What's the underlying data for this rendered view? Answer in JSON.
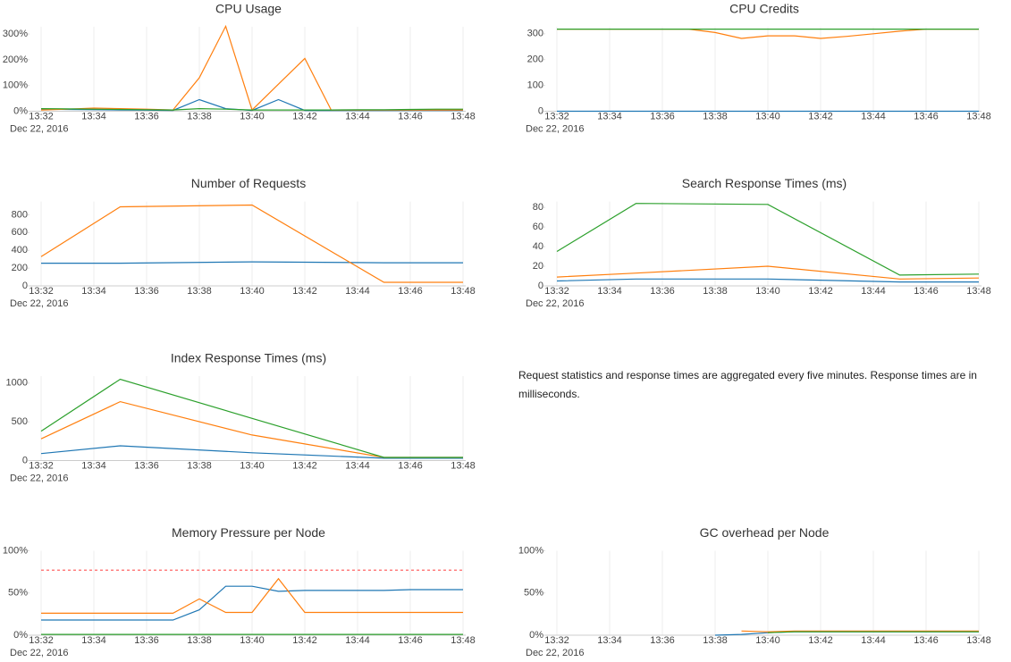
{
  "chart_data": [
    {
      "type": "line",
      "title": "CPU Usage",
      "x_date_label": "Dec 22, 2016",
      "x": [
        "13:32",
        "13:33",
        "13:34",
        "13:35",
        "13:36",
        "13:37",
        "13:38",
        "13:39",
        "13:40",
        "13:41",
        "13:42",
        "13:43",
        "13:44",
        "13:45",
        "13:46",
        "13:47",
        "13:48"
      ],
      "xlim": [
        "13:32",
        "13:48"
      ],
      "xticks": [
        "13:32",
        "13:34",
        "13:36",
        "13:38",
        "13:40",
        "13:42",
        "13:44",
        "13:46",
        "13:48"
      ],
      "ylim": [
        0,
        328
      ],
      "yticks": [
        {
          "value": 0,
          "label": "0%"
        },
        {
          "value": 100,
          "label": "100%"
        },
        {
          "value": 200,
          "label": "200%"
        },
        {
          "value": 300,
          "label": "300%"
        }
      ],
      "grid": "x",
      "series": [
        {
          "color": "#1f77b4",
          "values": [
            8,
            7,
            6,
            5,
            4,
            3,
            45,
            10,
            3,
            45,
            3,
            3,
            3,
            3,
            3,
            3,
            3
          ]
        },
        {
          "color": "#ff7f0e",
          "values": [
            5,
            8,
            12,
            10,
            8,
            5,
            130,
            330,
            5,
            105,
            205,
            5,
            5,
            5,
            5,
            5,
            5
          ]
        },
        {
          "color": "#2ca02c",
          "values": [
            10,
            9,
            8,
            7,
            6,
            5,
            10,
            8,
            5,
            5,
            5,
            5,
            6,
            6,
            7,
            8,
            8
          ]
        }
      ]
    },
    {
      "type": "line",
      "title": "CPU Credits",
      "x_date_label": "Dec 22, 2016",
      "x": [
        "13:32",
        "13:33",
        "13:34",
        "13:35",
        "13:36",
        "13:37",
        "13:38",
        "13:39",
        "13:40",
        "13:41",
        "13:42",
        "13:43",
        "13:44",
        "13:45",
        "13:46",
        "13:47",
        "13:48"
      ],
      "xlim": [
        "13:32",
        "13:48"
      ],
      "xticks": [
        "13:32",
        "13:34",
        "13:36",
        "13:38",
        "13:40",
        "13:42",
        "13:44",
        "13:46",
        "13:48"
      ],
      "ylim": [
        0,
        327
      ],
      "yticks": [
        0,
        100,
        200,
        300
      ],
      "grid": "x",
      "series": [
        {
          "color": "#1f77b4",
          "values": [
            0,
            0,
            0,
            0,
            0,
            0,
            0,
            0,
            0,
            0,
            0,
            0,
            0,
            0,
            0,
            0,
            0
          ]
        },
        {
          "color": "#ff7f0e",
          "values": [
            318,
            318,
            318,
            318,
            318,
            318,
            305,
            282,
            292,
            292,
            282,
            290,
            300,
            310,
            318,
            318,
            318
          ]
        },
        {
          "color": "#2ca02c",
          "values": [
            318,
            318,
            318,
            318,
            318,
            318,
            318,
            318,
            318,
            318,
            318,
            318,
            318,
            318,
            318,
            318,
            318
          ]
        }
      ]
    },
    {
      "type": "line",
      "title": "Number of Requests",
      "x_date_label": "Dec 22, 2016",
      "x": [
        "13:32",
        "13:35",
        "13:40",
        "13:45",
        "13:48"
      ],
      "xlim": [
        "13:32",
        "13:48"
      ],
      "xticks": [
        "13:32",
        "13:34",
        "13:36",
        "13:38",
        "13:40",
        "13:42",
        "13:44",
        "13:46",
        "13:48"
      ],
      "ylim": [
        0,
        950
      ],
      "yticks": [
        0,
        200,
        400,
        600,
        800
      ],
      "grid": "x",
      "series": [
        {
          "color": "#1f77b4",
          "values": [
            255,
            255,
            270,
            260,
            260
          ]
        },
        {
          "color": "#ff7f0e",
          "values": [
            330,
            890,
            910,
            40,
            40
          ]
        }
      ]
    },
    {
      "type": "line",
      "title": "Search Response Times (ms)",
      "x_date_label": "Dec 22, 2016",
      "x": [
        "13:32",
        "13:35",
        "13:40",
        "13:45",
        "13:48"
      ],
      "xlim": [
        "13:32",
        "13:48"
      ],
      "xticks": [
        "13:32",
        "13:34",
        "13:36",
        "13:38",
        "13:40",
        "13:42",
        "13:44",
        "13:46",
        "13:48"
      ],
      "ylim": [
        0,
        86
      ],
      "yticks": [
        0,
        20,
        40,
        60,
        80
      ],
      "grid": "x",
      "series": [
        {
          "color": "#1f77b4",
          "values": [
            5,
            7,
            7,
            4,
            4
          ]
        },
        {
          "color": "#ff7f0e",
          "values": [
            9,
            13,
            20,
            7,
            8
          ]
        },
        {
          "color": "#2ca02c",
          "values": [
            35,
            84,
            83,
            11,
            12
          ]
        }
      ]
    },
    {
      "type": "line",
      "title": "Index Response Times (ms)",
      "x_date_label": "Dec 22, 2016",
      "x": [
        "13:32",
        "13:35",
        "13:40",
        "13:45",
        "13:48"
      ],
      "xlim": [
        "13:32",
        "13:48"
      ],
      "xticks": [
        "13:32",
        "13:34",
        "13:36",
        "13:38",
        "13:40",
        "13:42",
        "13:44",
        "13:46",
        "13:48"
      ],
      "ylim": [
        0,
        1090
      ],
      "yticks": [
        0,
        500,
        1000
      ],
      "grid": "x",
      "series": [
        {
          "color": "#1f77b4",
          "values": [
            90,
            190,
            100,
            30,
            30
          ]
        },
        {
          "color": "#ff7f0e",
          "values": [
            280,
            760,
            330,
            40,
            40
          ]
        },
        {
          "color": "#2ca02c",
          "values": [
            380,
            1050,
            545,
            40,
            40
          ]
        }
      ]
    },
    {
      "type": "line",
      "title": "Memory Pressure per Node",
      "x_date_label": "Dec 22, 2016",
      "x": [
        "13:32",
        "13:33",
        "13:34",
        "13:35",
        "13:36",
        "13:37",
        "13:38",
        "13:39",
        "13:40",
        "13:41",
        "13:42",
        "13:43",
        "13:44",
        "13:45",
        "13:46",
        "13:47",
        "13:48"
      ],
      "xlim": [
        "13:32",
        "13:48"
      ],
      "xticks": [
        "13:32",
        "13:34",
        "13:36",
        "13:38",
        "13:40",
        "13:42",
        "13:44",
        "13:46",
        "13:48"
      ],
      "ylim": [
        0,
        100
      ],
      "yticks": [
        {
          "value": 0,
          "label": "0%"
        },
        {
          "value": 50,
          "label": "50%"
        },
        {
          "value": 100,
          "label": "100%"
        }
      ],
      "grid": "x",
      "series": [
        {
          "color": "#1f77b4",
          "values": [
            18,
            18,
            18,
            18,
            18,
            18,
            30,
            58,
            58,
            52,
            53,
            53,
            53,
            53,
            54,
            54,
            54
          ]
        },
        {
          "color": "#ff7f0e",
          "values": [
            26,
            26,
            26,
            26,
            26,
            26,
            43,
            27,
            27,
            67,
            27,
            27,
            27,
            27,
            27,
            27,
            27
          ]
        },
        {
          "color": "#2ca02c",
          "values": [
            1,
            1,
            1,
            1,
            1,
            1,
            1,
            1,
            1,
            1,
            1,
            1,
            1,
            1,
            1,
            1,
            1
          ]
        },
        {
          "color": "#ff5555",
          "dashed": true,
          "values": [
            77,
            77,
            77,
            77,
            77,
            77,
            77,
            77,
            77,
            77,
            77,
            77,
            77,
            77,
            77,
            77,
            77
          ]
        }
      ]
    },
    {
      "type": "line",
      "title": "GC overhead per Node",
      "x_date_label": "Dec 22, 2016",
      "x": [
        "13:32",
        "13:33",
        "13:34",
        "13:35",
        "13:36",
        "13:37",
        "13:38",
        "13:39",
        "13:40",
        "13:41",
        "13:42",
        "13:43",
        "13:44",
        "13:45",
        "13:46",
        "13:47",
        "13:48"
      ],
      "xlim": [
        "13:32",
        "13:48"
      ],
      "xticks": [
        "13:32",
        "13:34",
        "13:36",
        "13:38",
        "13:40",
        "13:42",
        "13:44",
        "13:46",
        "13:48"
      ],
      "ylim": [
        0,
        100
      ],
      "yticks": [
        {
          "value": 0,
          "label": "0%"
        },
        {
          "value": 50,
          "label": "50%"
        },
        {
          "value": 100,
          "label": "100%"
        }
      ],
      "grid": "x",
      "series": [
        {
          "color": "#1f77b4",
          "values": [
            null,
            null,
            null,
            null,
            null,
            null,
            0,
            1,
            3,
            4,
            4,
            4,
            4,
            4,
            4,
            4,
            4
          ]
        },
        {
          "color": "#ff7f0e",
          "values": [
            null,
            null,
            null,
            null,
            null,
            null,
            null,
            5,
            4,
            5,
            5,
            5,
            5,
            5,
            5,
            5,
            5
          ]
        },
        {
          "color": "#2ca02c",
          "values": [
            null,
            null,
            null,
            null,
            null,
            null,
            null,
            null,
            3,
            4,
            4,
            4,
            4,
            4,
            4,
            4,
            4
          ]
        }
      ]
    }
  ],
  "note": "Request statistics and response times are aggregated every five minutes. Response times are in milliseconds."
}
